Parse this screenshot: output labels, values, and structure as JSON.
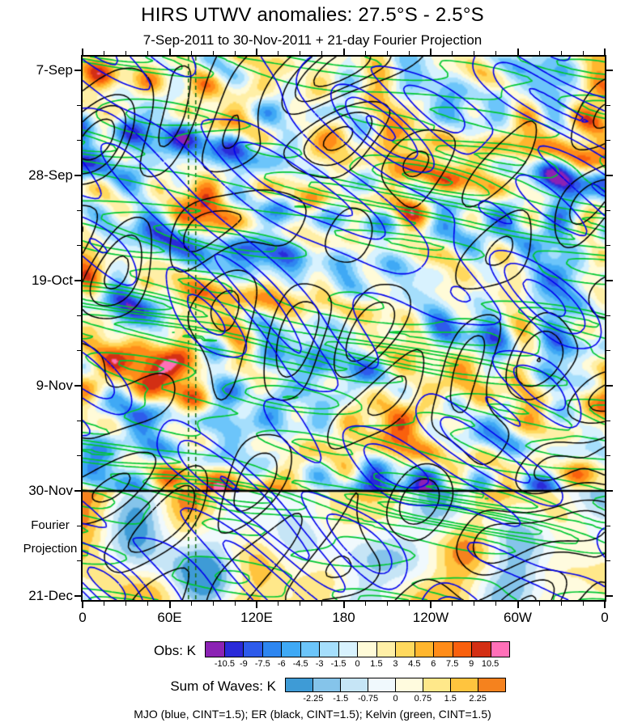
{
  "page": {
    "title": "HIRS UTWV anomalies: 27.5°S - 2.5°S",
    "subtitle": "7-Sep-2011 to 30-Nov-2011 + 21-day Fourier Projection",
    "footnote": "MJO (blue, CINT=1.5); ER (black, CINT=1.5); Kelvin (green, CINT=1.5)"
  },
  "chart_data": {
    "type": "heatmap",
    "title": "HIRS UTWV anomalies: 27.5°S - 2.5°S",
    "subtitle": "7-Sep-2011 to 30-Nov-2011 + 21-day Fourier Projection",
    "x_axis": {
      "tick_labels": [
        "0",
        "60E",
        "120E",
        "180",
        "120W",
        "60W",
        "0"
      ],
      "range": "0 to 360 degrees longitude, full globe"
    },
    "y_axis": {
      "tick_labels": [
        "7-Sep",
        "28-Sep",
        "19-Oct",
        "9-Nov",
        "30-Nov",
        "21-Dec"
      ],
      "extra_label_lines": [
        "Fourier",
        "Projection"
      ],
      "orientation": "time increases downward, 21-day major tick spacing"
    },
    "divider_line": {
      "at": "30-Nov",
      "meaning": "solid horizontal line separating observations from 21-day Fourier projection"
    },
    "reference_lines": {
      "longitudes_deg": [
        73,
        78
      ],
      "color": "#1A6E1A",
      "style": "vertical dashed pair"
    },
    "obs_colorbar": {
      "label": "Obs: K",
      "tick_labels": [
        "-10.5",
        "-9",
        "-7.5",
        "-6",
        "-4.5",
        "-3",
        "-1.5",
        "0",
        "1.5",
        "3",
        "4.5",
        "6",
        "7.5",
        "9",
        "10.5"
      ],
      "colors": [
        "#8B22B4",
        "#2A2AD9",
        "#2E5BEB",
        "#2E86F0",
        "#3FA9F5",
        "#6CC5FA",
        "#A5DEFC",
        "#D8F2FE",
        "#FFFBD8",
        "#FFEFA6",
        "#FFD95E",
        "#FFB62E",
        "#FF8C19",
        "#F9600D",
        "#D32F14",
        "#FF70B8"
      ]
    },
    "waves_colorbar": {
      "label": "Sum of Waves: K",
      "tick_labels": [
        "-2.25",
        "-1.5",
        "-0.75",
        "0",
        "0.75",
        "1.5",
        "2.25"
      ],
      "colors": [
        "#3E9BD6",
        "#85C4EA",
        "#C6E5F6",
        "#F0F9FD",
        "#FFFBDE",
        "#FFE88A",
        "#FFC43E",
        "#F5821E"
      ]
    },
    "overlays": [
      {
        "name": "MJO",
        "color": "#0000EE",
        "cint": 1.5,
        "line_style": "solid positive, dashed negative"
      },
      {
        "name": "ER",
        "color": "#000000",
        "cint": 1.5,
        "line_style": "solid positive, dashed negative"
      },
      {
        "name": "Kelvin",
        "color": "#00C832",
        "cint": 1.5,
        "line_style": "solid positive, dashed negative"
      }
    ]
  }
}
